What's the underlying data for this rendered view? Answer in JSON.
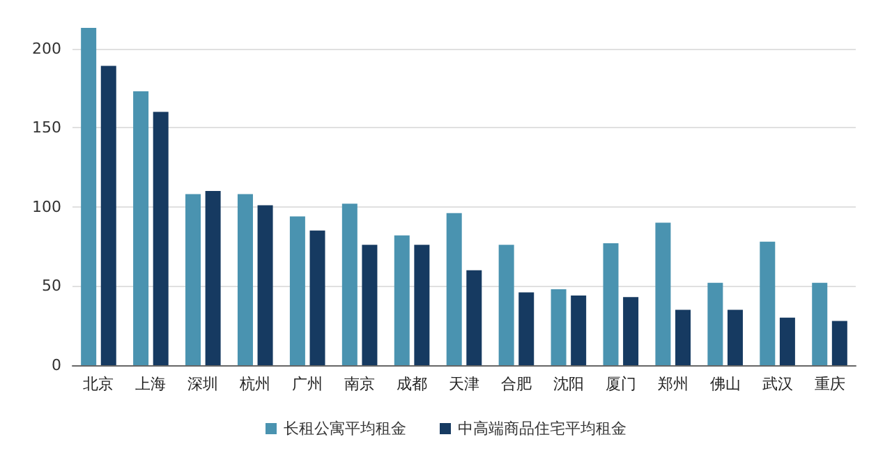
{
  "chart_data": {
    "type": "bar",
    "categories": [
      "北京",
      "上海",
      "深圳",
      "杭州",
      "广州",
      "南京",
      "成都",
      "天津",
      "合肥",
      "沈阳",
      "厦门",
      "郑州",
      "佛山",
      "武汉",
      "重庆"
    ],
    "series": [
      {
        "name": "长租公寓平均租金",
        "color": "#4a93b0",
        "values": [
          213,
          173,
          108,
          108,
          94,
          102,
          82,
          96,
          76,
          48,
          77,
          90,
          52,
          78,
          52
        ]
      },
      {
        "name": "中高端商品住宅平均租金",
        "color": "#163a61",
        "values": [
          189,
          160,
          110,
          101,
          85,
          76,
          76,
          60,
          46,
          44,
          43,
          35,
          35,
          30,
          28
        ]
      }
    ],
    "ylim": [
      0,
      213
    ],
    "yticks": [
      0,
      50,
      100,
      150,
      200
    ],
    "grid": "y",
    "legend": "bottom"
  }
}
